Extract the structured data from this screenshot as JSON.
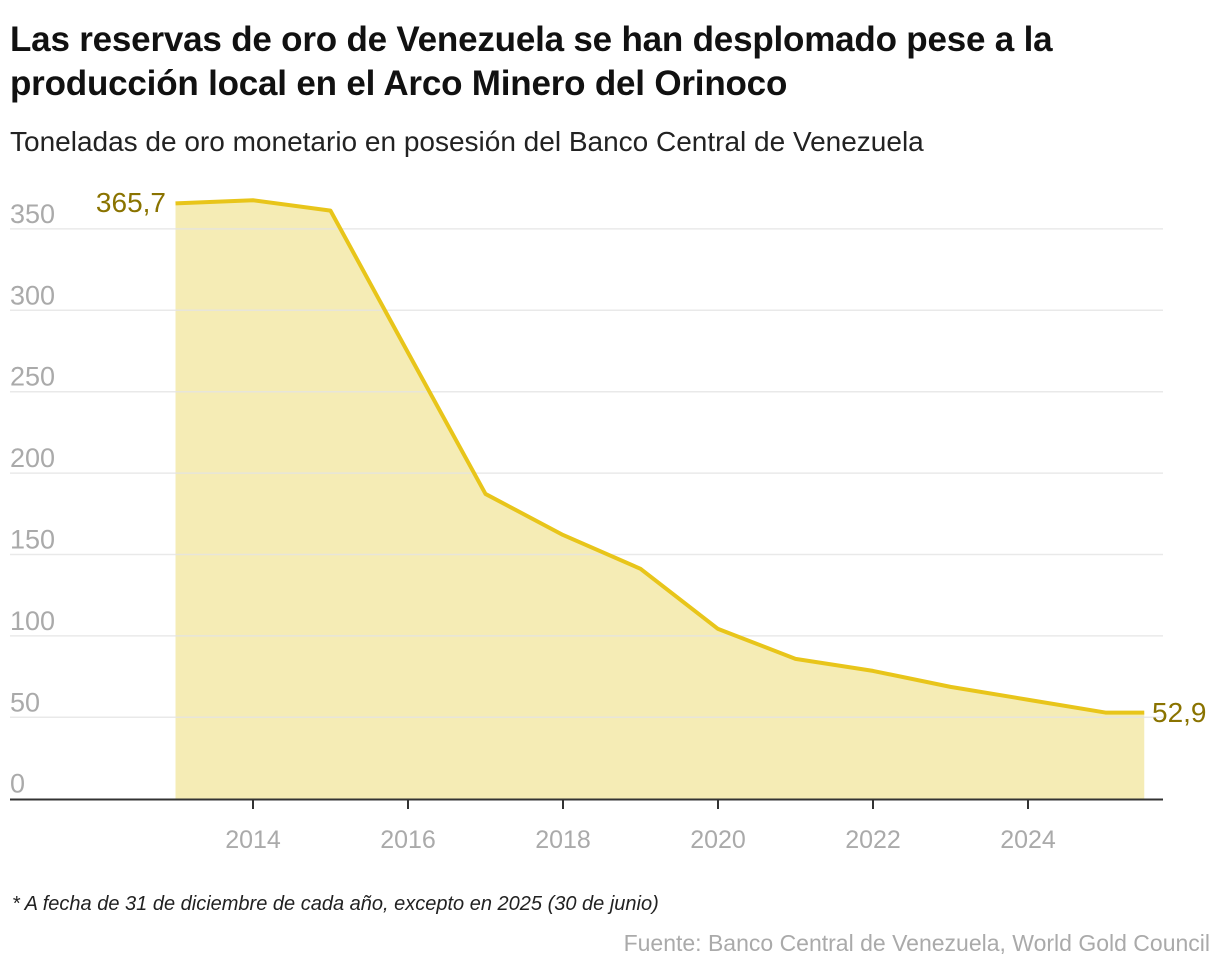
{
  "title": "Las reservas de oro de Venezuela se han desplomado pese a la producción local en el Arco Minero del Orinoco",
  "subtitle": "Toneladas de oro monetario en posesión del Banco Central de Venezuela",
  "note": "* A fecha de 31 de diciembre de cada año, excepto en 2025 (30 de junio)",
  "source": "Fuente: Banco Central de Venezuela, World Gold Council",
  "colors": {
    "line": "#e8c51a",
    "area": "#f5ecb5",
    "label": "#8a7300",
    "grid": "#e3e3e3",
    "tick": "#aaaaaa"
  },
  "chart_data": {
    "type": "area",
    "x": [
      2013,
      2014,
      2015,
      2016,
      2017,
      2018,
      2019,
      2020,
      2021,
      2022,
      2023,
      2024,
      2025,
      2025.5
    ],
    "values": [
      365.7,
      367.6,
      361.2,
      274,
      187.2,
      162,
      141.2,
      104.3,
      85.9,
      78.5,
      68.7,
      60.8,
      52.9,
      52.9
    ],
    "ylim": [
      0,
      350
    ],
    "yticks": [
      "0",
      "50",
      "100",
      "150",
      "200",
      "250",
      "300",
      "350"
    ],
    "xticks": [
      "2014",
      "2016",
      "2018",
      "2020",
      "2022",
      "2024"
    ],
    "annotations": {
      "first": "365,7",
      "last": "52,9"
    },
    "grid": true
  }
}
